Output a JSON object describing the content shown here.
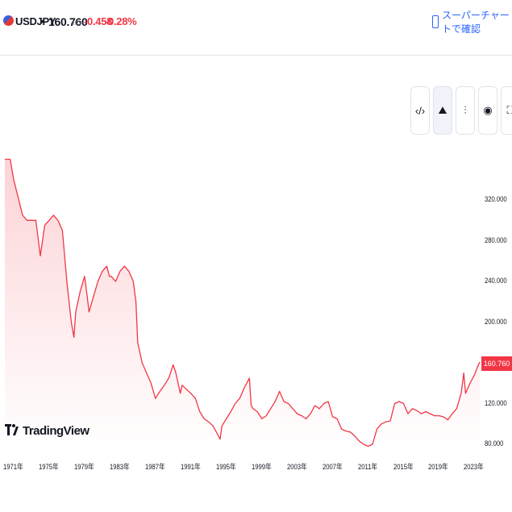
{
  "header": {
    "symbol": "USDJPY",
    "separator": "•",
    "price": "160.760",
    "price_unit": "JPY",
    "change": "-0.458",
    "change_pct": "-0.28%",
    "super_chart_label": "スーパーチャートで確認",
    "flag_icon": "us-jp-flag-icon"
  },
  "toolbar": {
    "buttons": [
      {
        "name": "embed-code-icon",
        "glyph": "‹/›"
      },
      {
        "name": "area-chart-icon",
        "glyph": "⛰"
      },
      {
        "name": "candles-icon",
        "glyph": "⫶"
      },
      {
        "name": "camera-icon",
        "glyph": "◉"
      },
      {
        "name": "fullscreen-icon",
        "glyph": "⛶"
      }
    ]
  },
  "brand": {
    "logo_mark": "17",
    "name": "TradingView"
  },
  "colors": {
    "line": "#f23645",
    "fill_top": "#fcd3d7",
    "fill_bottom": "#ffffff",
    "text": "#131722",
    "accent": "#2962ff"
  },
  "chart_data": {
    "type": "area",
    "last_value_label": "160.760",
    "y_ticks": [
      "320.000",
      "280.000",
      "240.000",
      "200.000",
      "160.000",
      "120.000",
      "80.000"
    ],
    "y_tick_values": [
      320,
      280,
      240,
      200,
      160,
      120,
      80
    ],
    "x_ticks": [
      "1971年",
      "1975年",
      "1979年",
      "1983年",
      "1987年",
      "1991年",
      "1995年",
      "1999年",
      "2003年",
      "2007年",
      "2011年",
      "2015年",
      "2019年",
      "2023年"
    ],
    "x_tick_years": [
      1971,
      1975,
      1979,
      1983,
      1987,
      1991,
      1995,
      1999,
      2003,
      2007,
      2011,
      2015,
      2019,
      2023
    ],
    "ylim": [
      75,
      365
    ],
    "xlim": [
      1971.0,
      2024.6
    ],
    "grid": false,
    "series": [
      {
        "x": [
          1971.0,
          1971.6,
          1972.0,
          1973.0,
          1973.5,
          1974.0,
          1974.5,
          1975.0,
          1975.5,
          1976.0,
          1976.5,
          1977.0,
          1977.5,
          1978.0,
          1978.5,
          1978.8,
          1979.0,
          1979.5,
          1980.0,
          1980.3,
          1980.5,
          1981.0,
          1981.5,
          1982.0,
          1982.5,
          1982.8,
          1983.0,
          1983.5,
          1984.0,
          1984.5,
          1985.0,
          1985.5,
          1985.8,
          1986.0,
          1986.5,
          1987.0,
          1987.5,
          1988.0,
          1988.5,
          1989.0,
          1989.5,
          1990.0,
          1990.3,
          1990.8,
          1991.0,
          1991.5,
          1992.0,
          1992.5,
          1993.0,
          1993.5,
          1994.0,
          1994.5,
          1995.0,
          1995.3,
          1995.5,
          1996.0,
          1996.5,
          1997.0,
          1997.5,
          1998.0,
          1998.6,
          1998.8,
          1999.0,
          1999.5,
          2000.0,
          2000.5,
          2001.0,
          2001.5,
          2002.0,
          2002.5,
          2003.0,
          2003.5,
          2004.0,
          2004.5,
          2005.0,
          2005.5,
          2006.0,
          2006.5,
          2007.0,
          2007.5,
          2008.0,
          2008.5,
          2009.0,
          2009.5,
          2010.0,
          2010.5,
          2011.0,
          2011.5,
          2012.0,
          2012.5,
          2013.0,
          2013.5,
          2014.0,
          2014.5,
          2015.0,
          2015.5,
          2016.0,
          2016.5,
          2017.0,
          2017.5,
          2018.0,
          2018.5,
          2019.0,
          2019.5,
          2020.0,
          2020.5,
          2021.0,
          2021.5,
          2022.0,
          2022.5,
          2022.8,
          2023.0,
          2023.5,
          2024.0,
          2024.3,
          2024.6
        ],
        "values": [
          360,
          360,
          340,
          305,
          300,
          300,
          300,
          265,
          295,
          300,
          305,
          300,
          290,
          240,
          200,
          185,
          210,
          230,
          245,
          225,
          210,
          225,
          240,
          250,
          255,
          245,
          245,
          240,
          250,
          255,
          250,
          240,
          220,
          180,
          160,
          150,
          140,
          125,
          132,
          138,
          145,
          158,
          150,
          130,
          138,
          134,
          130,
          125,
          112,
          105,
          102,
          98,
          90,
          85,
          98,
          105,
          112,
          120,
          125,
          135,
          145,
          118,
          115,
          112,
          105,
          108,
          115,
          122,
          132,
          122,
          120,
          115,
          110,
          108,
          105,
          110,
          118,
          115,
          120,
          122,
          107,
          105,
          95,
          93,
          92,
          88,
          83,
          80,
          78,
          80,
          95,
          100,
          102,
          103,
          120,
          122,
          120,
          110,
          115,
          113,
          110,
          112,
          110,
          108,
          108,
          107,
          104,
          110,
          115,
          130,
          150,
          130,
          140,
          148,
          155,
          160.76
        ]
      }
    ]
  }
}
